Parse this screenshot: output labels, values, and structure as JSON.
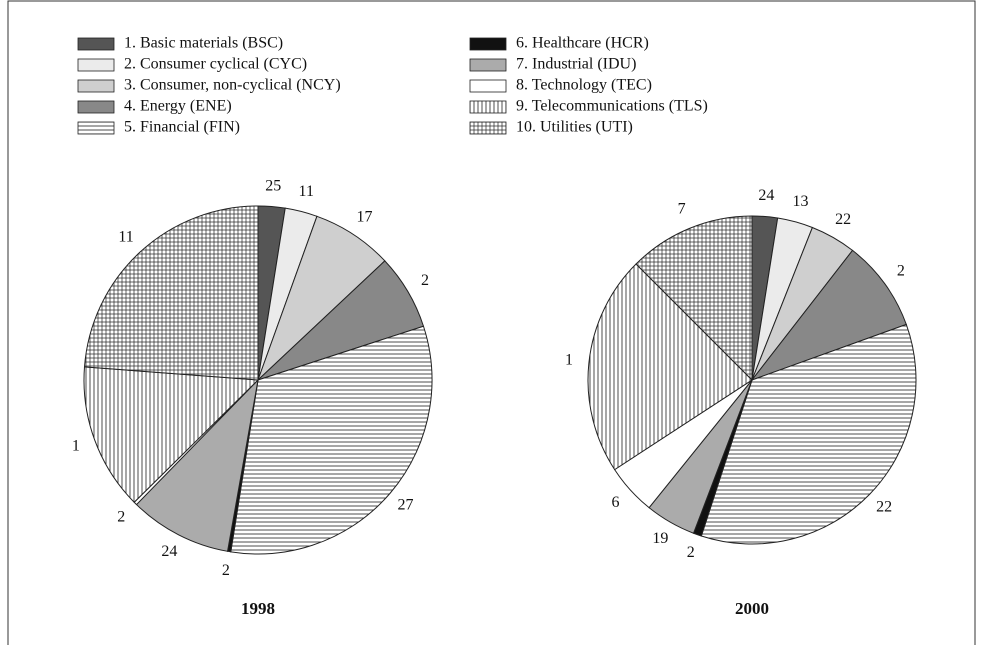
{
  "chart_data": {
    "type": "pie",
    "categories": [
      "1. Basic materials (BSC)",
      "2. Consumer cyclical (CYC)",
      "3. Consumer, non-cyclical (NCY)",
      "4. Energy (ENE)",
      "5. Financial (FIN)",
      "6. Healthcare (HCR)",
      "7. Industrial (IDU)",
      "8. Technology (TEC)",
      "9. Telecommunications (TLS)",
      "10. Utilities (UTI)"
    ],
    "colors": [
      "#555555",
      "#ebebeb",
      "#cfcfcf",
      "#888888",
      "#ffffff",
      "#111111",
      "#ababab",
      "#ffffff",
      "#ffffff",
      "#ffffff"
    ],
    "hatch": [
      null,
      null,
      null,
      null,
      "horizontal",
      null,
      null,
      null,
      "vertical",
      "grid"
    ],
    "pies": [
      {
        "title": "1998",
        "values": [
          2.5,
          3,
          7.5,
          7,
          32.5,
          0.3,
          9.5,
          0.3,
          13.6,
          23.8
        ],
        "labels": [
          25,
          11,
          17,
          2,
          27,
          2,
          24,
          2,
          1,
          11
        ]
      },
      {
        "title": "2000",
        "values": [
          2.5,
          3.5,
          4.5,
          9,
          35.5,
          0.8,
          5,
          5,
          21.7,
          12.5
        ],
        "labels": [
          24,
          13,
          22,
          2,
          22,
          2,
          19,
          6,
          1,
          7
        ]
      }
    ]
  }
}
